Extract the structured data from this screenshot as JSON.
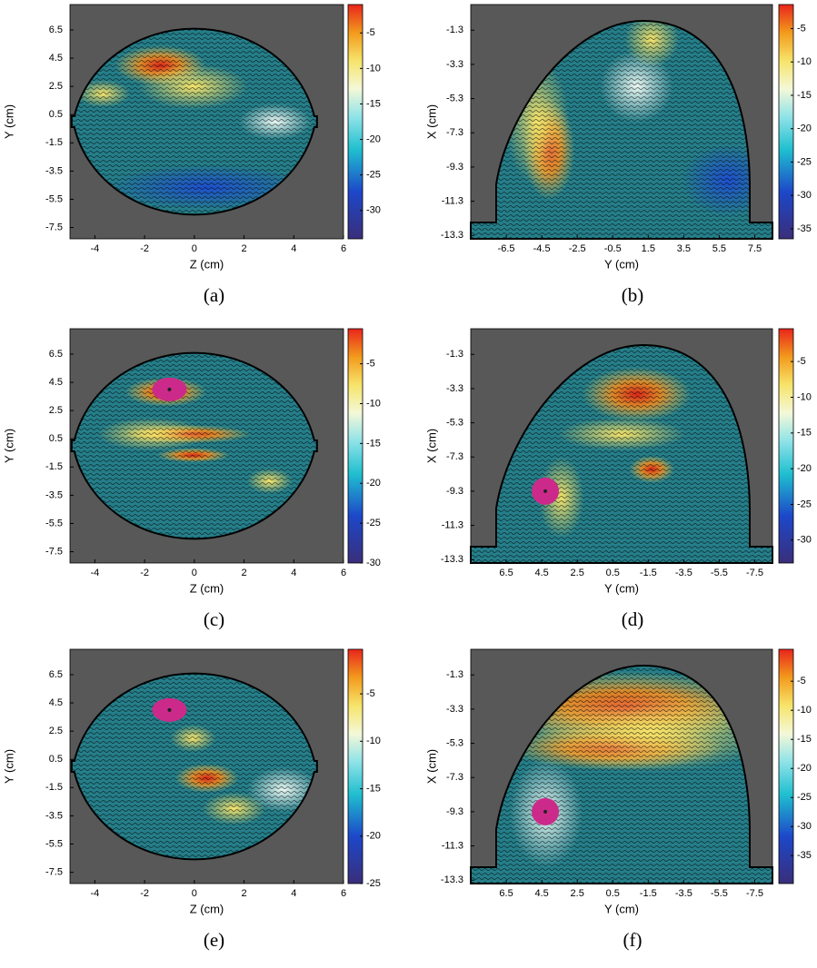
{
  "chart_data": [
    {
      "type": "heatmap",
      "caption": "(a)",
      "xlabel": "Z (cm)",
      "ylabel": "Y (cm)",
      "shape": "disc",
      "xlim": [
        -5,
        6
      ],
      "ylim": [
        -8.3,
        8.3
      ],
      "xticks": [
        -4,
        -2,
        0,
        2,
        4,
        6
      ],
      "yticks": [
        6.5,
        4.5,
        2.5,
        0.5,
        -1.5,
        -3.5,
        -5.5,
        -7.5
      ],
      "clim": [
        -34,
        -1
      ],
      "cticks": [
        -5,
        -10,
        -15,
        -20,
        -25,
        -30
      ]
    },
    {
      "type": "heatmap",
      "caption": "(b)",
      "xlabel": "Y (cm)",
      "ylabel": "X (cm)",
      "shape": "dome",
      "xlim": [
        -8.5,
        8.5
      ],
      "ylim": [
        -13.5,
        0.2
      ],
      "xticks": [
        -6.5,
        -4.5,
        -2.5,
        -0.5,
        1.5,
        3.5,
        5.5,
        7.5
      ],
      "yticks": [
        -1.3,
        -3.3,
        -5.3,
        -7.3,
        -9.3,
        -11.3,
        -13.3
      ],
      "clim": [
        -36.5,
        -1.4
      ],
      "cticks": [
        -5,
        -10,
        -15,
        -20,
        -25,
        -30,
        -35
      ]
    },
    {
      "type": "heatmap",
      "caption": "(c)",
      "xlabel": "Z (cm)",
      "ylabel": "Y (cm)",
      "shape": "disc",
      "xlim": [
        -5,
        6
      ],
      "ylim": [
        -8.3,
        8.3
      ],
      "xticks": [
        -4,
        -2,
        0,
        2,
        4,
        6
      ],
      "yticks": [
        6.5,
        4.5,
        2.5,
        0.5,
        -1.5,
        -3.5,
        -5.5,
        -7.5
      ],
      "clim": [
        -30,
        -0.6
      ],
      "cticks": [
        -5,
        -10,
        -15,
        -20,
        -25,
        -30
      ]
    },
    {
      "type": "heatmap",
      "caption": "(d)",
      "xlabel": "Y (cm)",
      "ylabel": "X (cm)",
      "shape": "dome",
      "xlim": [
        8.5,
        -8.5
      ],
      "ylim": [
        -13.5,
        0.2
      ],
      "xticks": [
        6.5,
        4.5,
        2.5,
        0.5,
        -1.5,
        -3.5,
        -5.5,
        -7.5
      ],
      "yticks": [
        -1.3,
        -3.3,
        -5.3,
        -7.3,
        -9.3,
        -11.3,
        -13.3
      ],
      "clim": [
        -33.2,
        -0.4
      ],
      "cticks": [
        -5,
        -10,
        -15,
        -20,
        -25,
        -30
      ]
    },
    {
      "type": "heatmap",
      "caption": "(e)",
      "xlabel": "Z (cm)",
      "ylabel": "Y (cm)",
      "shape": "disc",
      "xlim": [
        -5,
        6
      ],
      "ylim": [
        -8.3,
        8.3
      ],
      "xticks": [
        -4,
        -2,
        0,
        2,
        4,
        6
      ],
      "yticks": [
        6.5,
        4.5,
        2.5,
        0.5,
        -1.5,
        -3.5,
        -5.5,
        -7.5
      ],
      "clim": [
        -25,
        -0.3
      ],
      "cticks": [
        -5,
        -10,
        -15,
        -20,
        -25
      ]
    },
    {
      "type": "heatmap",
      "caption": "(f)",
      "xlabel": "Y (cm)",
      "ylabel": "X (cm)",
      "shape": "dome",
      "xlim": [
        8.5,
        -8.5
      ],
      "ylim": [
        -13.5,
        0.2
      ],
      "xticks": [
        6.5,
        4.5,
        2.5,
        0.5,
        -1.5,
        -3.5,
        -5.5,
        -7.5
      ],
      "yticks": [
        -1.3,
        -3.3,
        -5.3,
        -7.3,
        -9.3,
        -11.3,
        -13.3
      ],
      "clim": [
        -39.8,
        0.5
      ],
      "cticks": [
        -5,
        -10,
        -15,
        -20,
        -25,
        -30,
        -35
      ]
    }
  ]
}
